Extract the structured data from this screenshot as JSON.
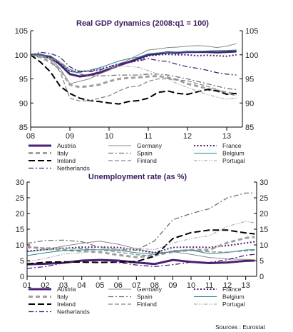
{
  "chart_data": [
    {
      "type": "line",
      "title": "Real GDP dynamics (2008:q1 = 100)",
      "ylim": [
        85,
        105
      ],
      "y_ticks": [
        "85",
        "90",
        "95",
        "100",
        "105"
      ],
      "x_ticks": [
        "08",
        "09",
        "10",
        "11",
        "12",
        "13"
      ],
      "x": [
        2008,
        2008.25,
        2008.5,
        2008.75,
        2009,
        2009.25,
        2009.5,
        2009.75,
        2010,
        2010.25,
        2010.5,
        2010.75,
        2011,
        2011.25,
        2011.5,
        2011.75,
        2012,
        2012.25,
        2012.5,
        2012.75,
        2013,
        2013.25
      ],
      "legend_position": "bottom",
      "series": [
        {
          "name": "Austria",
          "color": "#4b1f73",
          "style": "solid-thick",
          "values": [
            100,
            100,
            99.5,
            98,
            96,
            95.5,
            95.8,
            96.3,
            97,
            97.8,
            98.5,
            99.2,
            100,
            100.2,
            100.5,
            100.4,
            100.6,
            100.6,
            100.6,
            100.5,
            100.6,
            100.7
          ]
        },
        {
          "name": "Germany",
          "color": "#888888",
          "style": "solid-thin",
          "values": [
            100,
            99.6,
            99.2,
            97.2,
            94,
            94.5,
            95,
            96,
            96.8,
            98,
            99,
            100,
            101,
            101.2,
            101.5,
            101.6,
            101.8,
            101.9,
            101.8,
            101.5,
            101.8,
            102.3
          ]
        },
        {
          "name": "France",
          "color": "#4b1f73",
          "style": "dotted",
          "values": [
            100,
            99.6,
            99.4,
            98.3,
            96.6,
            96.5,
            96.7,
            97,
            97.5,
            98,
            98.4,
            98.8,
            99.8,
            100,
            100.1,
            100,
            100,
            99.8,
            99.9,
            99.8,
            99.7,
            100
          ]
        },
        {
          "name": "Italy",
          "color": "#a0a0a0",
          "style": "dash-thick",
          "values": [
            100,
            99.5,
            98.5,
            97,
            93.8,
            93.3,
            93.5,
            93.8,
            94.5,
            95,
            95.2,
            95.3,
            95.5,
            95.6,
            95.3,
            94.8,
            94,
            93.5,
            93,
            92.6,
            92.2,
            91.8
          ]
        },
        {
          "name": "Spain",
          "color": "#707070",
          "style": "dash-dot",
          "values": [
            100,
            99.8,
            99.4,
            98.5,
            97,
            96,
            95.7,
            95.6,
            95.7,
            95.8,
            95.8,
            95.8,
            96,
            96,
            95.8,
            95.4,
            95,
            94.5,
            94,
            93.5,
            93,
            92.8
          ]
        },
        {
          "name": "Belgium",
          "color": "#1a8a8a",
          "style": "solid-thin",
          "values": [
            100,
            100,
            99.8,
            98.5,
            96.5,
            96.3,
            96.8,
            97.3,
            98,
            98.7,
            99.2,
            99.5,
            100.2,
            100.4,
            100.5,
            100.6,
            100.6,
            100.7,
            100.8,
            100.9,
            100.9,
            101
          ]
        },
        {
          "name": "Ireland",
          "color": "#000000",
          "style": "long-dash",
          "values": [
            100,
            98.5,
            96.5,
            93.5,
            92,
            91,
            90.5,
            90.3,
            90,
            89.8,
            90.3,
            90.5,
            91,
            92.2,
            92.5,
            92,
            91.8,
            92.3,
            92.8,
            92.5,
            91.8,
            92
          ]
        },
        {
          "name": "Finland",
          "color": "#888888",
          "style": "dash-medium",
          "values": [
            100,
            99.8,
            99,
            96.5,
            91,
            90.4,
            90.5,
            91,
            91.5,
            92.5,
            93.3,
            93.5,
            94.5,
            95,
            95,
            94.8,
            94.6,
            94,
            93.5,
            92.8,
            92,
            91.5
          ]
        },
        {
          "name": "Portugal",
          "color": "#b0b0b0",
          "style": "dash-dot-dot",
          "values": [
            100,
            99.8,
            99.3,
            98.5,
            97,
            96.7,
            96.8,
            97,
            97.3,
            97.6,
            97.6,
            97.4,
            96.7,
            96,
            95,
            94,
            93.2,
            92.5,
            91.8,
            91.2,
            90.8,
            91
          ]
        },
        {
          "name": "Netherlands",
          "color": "#4b1f73",
          "style": "dash-dot",
          "values": [
            100,
            100.5,
            100.3,
            99.5,
            97.5,
            96.5,
            96.5,
            96.8,
            97.5,
            98.2,
            98.5,
            98.7,
            99.2,
            98.8,
            98.6,
            98,
            97.5,
            97.2,
            96.8,
            96.3,
            96,
            95.8
          ]
        }
      ]
    },
    {
      "type": "line",
      "title": "Unemployment rate (as %)",
      "ylim": [
        0,
        30
      ],
      "y_ticks": [
        "0",
        "5",
        "10",
        "15",
        "20",
        "25",
        "30"
      ],
      "x_ticks": [
        "01",
        "02",
        "03",
        "04",
        "05",
        "06",
        "07",
        "08",
        "09",
        "10",
        "11",
        "12",
        "13"
      ],
      "x": [
        2001,
        2002,
        2003,
        2004,
        2005,
        2006,
        2007,
        2008,
        2009,
        2010,
        2011,
        2012,
        2013,
        2013.5
      ],
      "legend_position": "bottom",
      "series": [
        {
          "name": "Austria",
          "color": "#4b1f73",
          "style": "solid-thick",
          "values": [
            3.8,
            4.0,
            4.3,
            5.0,
            5.2,
            5.0,
            4.4,
            3.9,
            5.2,
            4.6,
            4.2,
            4.4,
            4.9,
            5.0
          ]
        },
        {
          "name": "Germany",
          "color": "#888888",
          "style": "solid-thin",
          "values": [
            7.8,
            8.5,
            9.6,
            10.5,
            11.2,
            10.2,
            8.8,
            7.5,
            7.8,
            7.0,
            6.0,
            5.5,
            5.4,
            5.3
          ]
        },
        {
          "name": "France",
          "color": "#4b1f73",
          "style": "dotted",
          "values": [
            8.0,
            8.5,
            8.9,
            9.3,
            9.3,
            9.2,
            8.4,
            7.5,
            9.2,
            9.3,
            9.2,
            9.8,
            10.6,
            11.0
          ]
        },
        {
          "name": "Italy",
          "color": "#a0a0a0",
          "style": "dash-thick",
          "values": [
            9.5,
            8.7,
            8.4,
            8.0,
            7.7,
            6.8,
            6.1,
            6.7,
            7.8,
            8.4,
            8.4,
            10.7,
            12.2,
            12.5
          ]
        },
        {
          "name": "Spain",
          "color": "#707070",
          "style": "dash-dot",
          "values": [
            10.5,
            11.4,
            11.5,
            11.0,
            9.2,
            8.5,
            8.3,
            11.3,
            18.0,
            20.0,
            21.5,
            25.0,
            26.5,
            26.5
          ]
        },
        {
          "name": "Belgium",
          "color": "#1a8a8a",
          "style": "solid-thin",
          "values": [
            6.6,
            7.5,
            8.2,
            8.4,
            8.5,
            8.3,
            7.5,
            7.0,
            7.9,
            8.3,
            7.2,
            7.6,
            8.4,
            8.5
          ]
        },
        {
          "name": "Ireland",
          "color": "#000000",
          "style": "long-dash",
          "values": [
            3.9,
            4.5,
            4.6,
            4.5,
            4.4,
            4.5,
            4.7,
            6.4,
            12.0,
            13.9,
            14.7,
            14.7,
            13.8,
            13.5
          ]
        },
        {
          "name": "Finland",
          "color": "#888888",
          "style": "dash-medium",
          "values": [
            9.1,
            9.1,
            9.0,
            8.8,
            8.4,
            7.7,
            6.9,
            6.4,
            8.2,
            8.4,
            7.8,
            7.7,
            8.1,
            8.3
          ]
        },
        {
          "name": "Portugal",
          "color": "#b0b0b0",
          "style": "dash-dot-dot",
          "values": [
            4.6,
            5.7,
            7.1,
            7.5,
            8.6,
            8.6,
            8.9,
            8.5,
            10.6,
            12.0,
            12.9,
            15.9,
            17.5,
            17.0
          ]
        },
        {
          "name": "Netherlands",
          "color": "#4b1f73",
          "style": "dash-dot",
          "values": [
            2.5,
            3.1,
            4.2,
            5.1,
            5.3,
            4.4,
            3.6,
            3.1,
            3.7,
            4.5,
            4.4,
            5.3,
            6.7,
            7.0
          ]
        }
      ]
    }
  ],
  "source": "Sources : Eurostat"
}
